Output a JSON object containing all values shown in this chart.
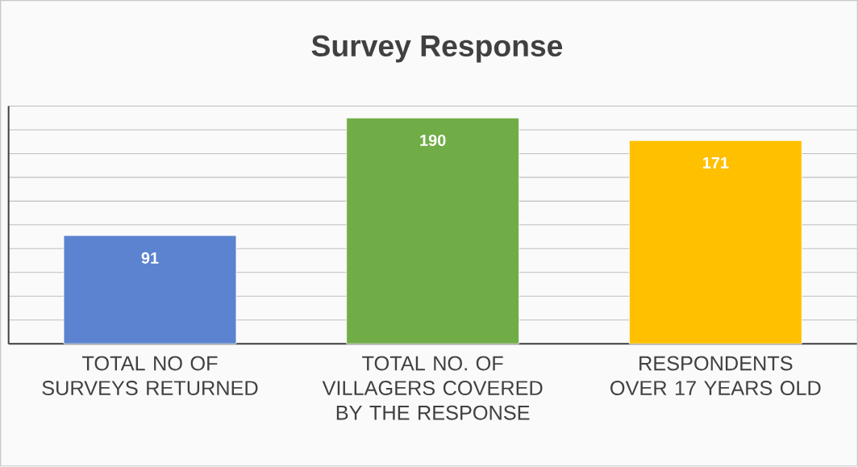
{
  "chart_data": {
    "type": "bar",
    "title": "Survey Response",
    "categories": [
      "TOTAL NO OF SURVEYS RETURNED",
      "TOTAL NO. OF VILLAGERS COVERED BY THE RESPONSE",
      "RESPONDENTS OVER 17 YEARS OLD"
    ],
    "values": [
      91,
      190,
      171
    ],
    "colors": [
      "#5b83cf",
      "#70ad47",
      "#ffc000"
    ],
    "ylim": [
      0,
      200
    ],
    "yticks": [
      {
        "value": 0,
        "label": null
      },
      {
        "value": 20,
        "label": null
      },
      {
        "value": 40,
        "label": null
      },
      {
        "value": 60,
        "label": null
      },
      {
        "value": 80,
        "label": null
      },
      {
        "value": 100,
        "label": null
      },
      {
        "value": 120,
        "label": null
      },
      {
        "value": 140,
        "label": null
      },
      {
        "value": 160,
        "label": null
      },
      {
        "value": 180,
        "label": null
      },
      {
        "value": 200,
        "label": null
      }
    ],
    "grid": "y",
    "tick_labels": "x",
    "data_labels": true
  }
}
